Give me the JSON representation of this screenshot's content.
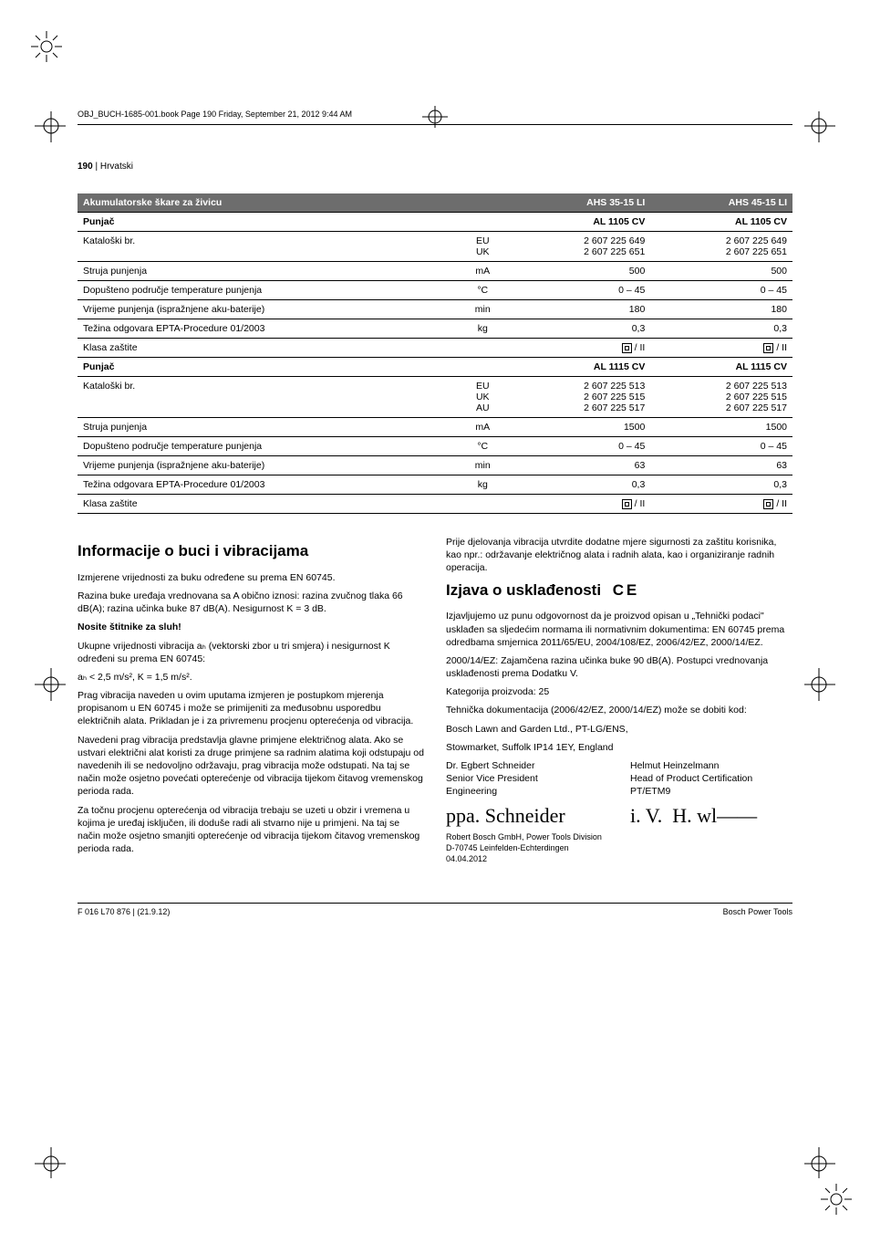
{
  "meta": {
    "runner": "OBJ_BUCH-1685-001.book  Page 190  Friday, September 21, 2012  9:44 AM",
    "page_num": "190",
    "lang_label": "Hrvatski",
    "footer_left": "F 016 L70 876 | (21.9.12)",
    "footer_right": "Bosch Power Tools"
  },
  "table": {
    "title": "Akumulatorske škare za živicu",
    "model_a": "AHS 35-15 LI",
    "model_b": "AHS 45-15 LI",
    "rows": [
      {
        "section": true,
        "label": "Punjač",
        "unit": "",
        "a": "AL 1105 CV",
        "b": "AL 1105 CV"
      },
      {
        "label": "Kataloški br.",
        "unit": "EU",
        "a": "2 607 225 649",
        "b": "2 607 225 649",
        "extra_unit": "UK",
        "extra_a": "2 607 225 651",
        "extra_b": "2 607 225 651"
      },
      {
        "label": "Struja punjenja",
        "unit": "mA",
        "a": "500",
        "b": "500"
      },
      {
        "label": "Dopušteno područje temperature punjenja",
        "unit": "°C",
        "a": "0 – 45",
        "b": "0 – 45"
      },
      {
        "label": "Vrijeme punjenja (ispražnjene aku-baterije)",
        "unit": "min",
        "a": "180",
        "b": "180"
      },
      {
        "label": "Težina odgovara EPTA-Procedure 01/2003",
        "unit": "kg",
        "a": "0,3",
        "b": "0,3"
      },
      {
        "label": "Klasa zaštite",
        "unit": "",
        "a": "CLASS_II",
        "b": "CLASS_II"
      },
      {
        "section": true,
        "label": "Punjač",
        "unit": "",
        "a": "AL 1115 CV",
        "b": "AL 1115 CV"
      },
      {
        "label": "Kataloški br.",
        "unit": "EU",
        "a": "2 607 225 513",
        "b": "2 607 225 513",
        "extra_unit": "UK",
        "extra_a": "2 607 225 515",
        "extra_b": "2 607 225 515",
        "extra2_unit": "AU",
        "extra2_a": "2 607 225 517",
        "extra2_b": "2 607 225 517"
      },
      {
        "label": "Struja punjenja",
        "unit": "mA",
        "a": "1500",
        "b": "1500"
      },
      {
        "label": "Dopušteno područje temperature punjenja",
        "unit": "°C",
        "a": "0 – 45",
        "b": "0 – 45"
      },
      {
        "label": "Vrijeme punjenja (ispražnjene aku-baterije)",
        "unit": "min",
        "a": "63",
        "b": "63"
      },
      {
        "label": "Težina odgovara EPTA-Procedure 01/2003",
        "unit": "kg",
        "a": "0,3",
        "b": "0,3"
      },
      {
        "label": "Klasa zaštite",
        "unit": "",
        "a": "CLASS_II",
        "b": "CLASS_II"
      }
    ]
  },
  "left_col": {
    "heading": "Informacije o buci i vibracijama",
    "p1": "Izmjerene vrijednosti za buku određene su prema EN 60745.",
    "p2": "Razina buke uređaja vrednovana sa A obično iznosi: razina zvučnog tlaka 66 dB(A); razina učinka buke 87 dB(A). Nesigurnost K = 3 dB.",
    "p3": "Nosite štitnike za sluh!",
    "p4": "Ukupne vrijednosti vibracija aₕ (vektorski zbor u tri smjera) i nesigurnost K određeni su prema EN 60745:",
    "p5": "aₕ < 2,5 m/s², K = 1,5 m/s².",
    "p6": "Prag vibracija naveden u ovim uputama izmjeren je postupkom mjerenja propisanom u EN 60745 i može se primijeniti za međusobnu usporedbu električnih alata. Prikladan je i za privremenu procjenu opterećenja od vibracija.",
    "p7": "Navedeni prag vibracija predstavlja glavne primjene električnog alata. Ako se ustvari električni alat koristi za druge primjene sa radnim alatima koji odstupaju od navedenih ili se nedovoljno održavaju, prag vibracija može odstupati. Na taj se način može osjetno povećati opterećenje od vibracija tijekom čitavog vremenskog perioda rada.",
    "p8": "Za točnu procjenu opterećenja od vibracija trebaju se uzeti u obzir i vremena u kojima je uređaj isključen, ili doduše radi ali stvarno nije u primjeni. Na taj se način može osjetno smanjiti opterećenje od vibracija tijekom čitavog vremenskog perioda rada."
  },
  "right_col": {
    "p0": "Prije djelovanja vibracija utvrdite dodatne mjere sigurnosti za zaštitu korisnika, kao npr.: održavanje električnog alata i radnih alata, kao i organiziranje radnih operacija.",
    "heading": "Izjava o usklađenosti",
    "p1": "Izjavljujemo uz punu odgovornost da je proizvod opisan u „Tehnički podaci\" usklađen sa sljedećim normama ili normativnim dokumentima: EN 60745 prema odredbama smjernica 2011/65/EU, 2004/108/EZ, 2006/42/EZ, 2000/14/EZ.",
    "p2": "2000/14/EZ: Zajamčena razina učinka buke 90 dB(A). Postupci vrednovanja usklađenosti prema Dodatku V.",
    "p3": "Kategorija proizvoda: 25",
    "p4": "Tehnička dokumentacija (2006/42/EZ, 2000/14/EZ) može se dobiti kod:",
    "p5": "Bosch Lawn and Garden Ltd., PT-LG/ENS,",
    "p6": "Stowmarket, Suffolk IP14 1EY, England",
    "sig1_name": "Dr. Egbert Schneider",
    "sig1_title": "Senior Vice President",
    "sig1_dept": "Engineering",
    "sig2_name": "Helmut Heinzelmann",
    "sig2_title": "Head of Product Certification",
    "sig2_dept": "PT/ETM9",
    "addr1": "Robert Bosch GmbH, Power Tools Division",
    "addr2": "D-70745 Leinfelden-Echterdingen",
    "addr3": "04.04.2012"
  }
}
